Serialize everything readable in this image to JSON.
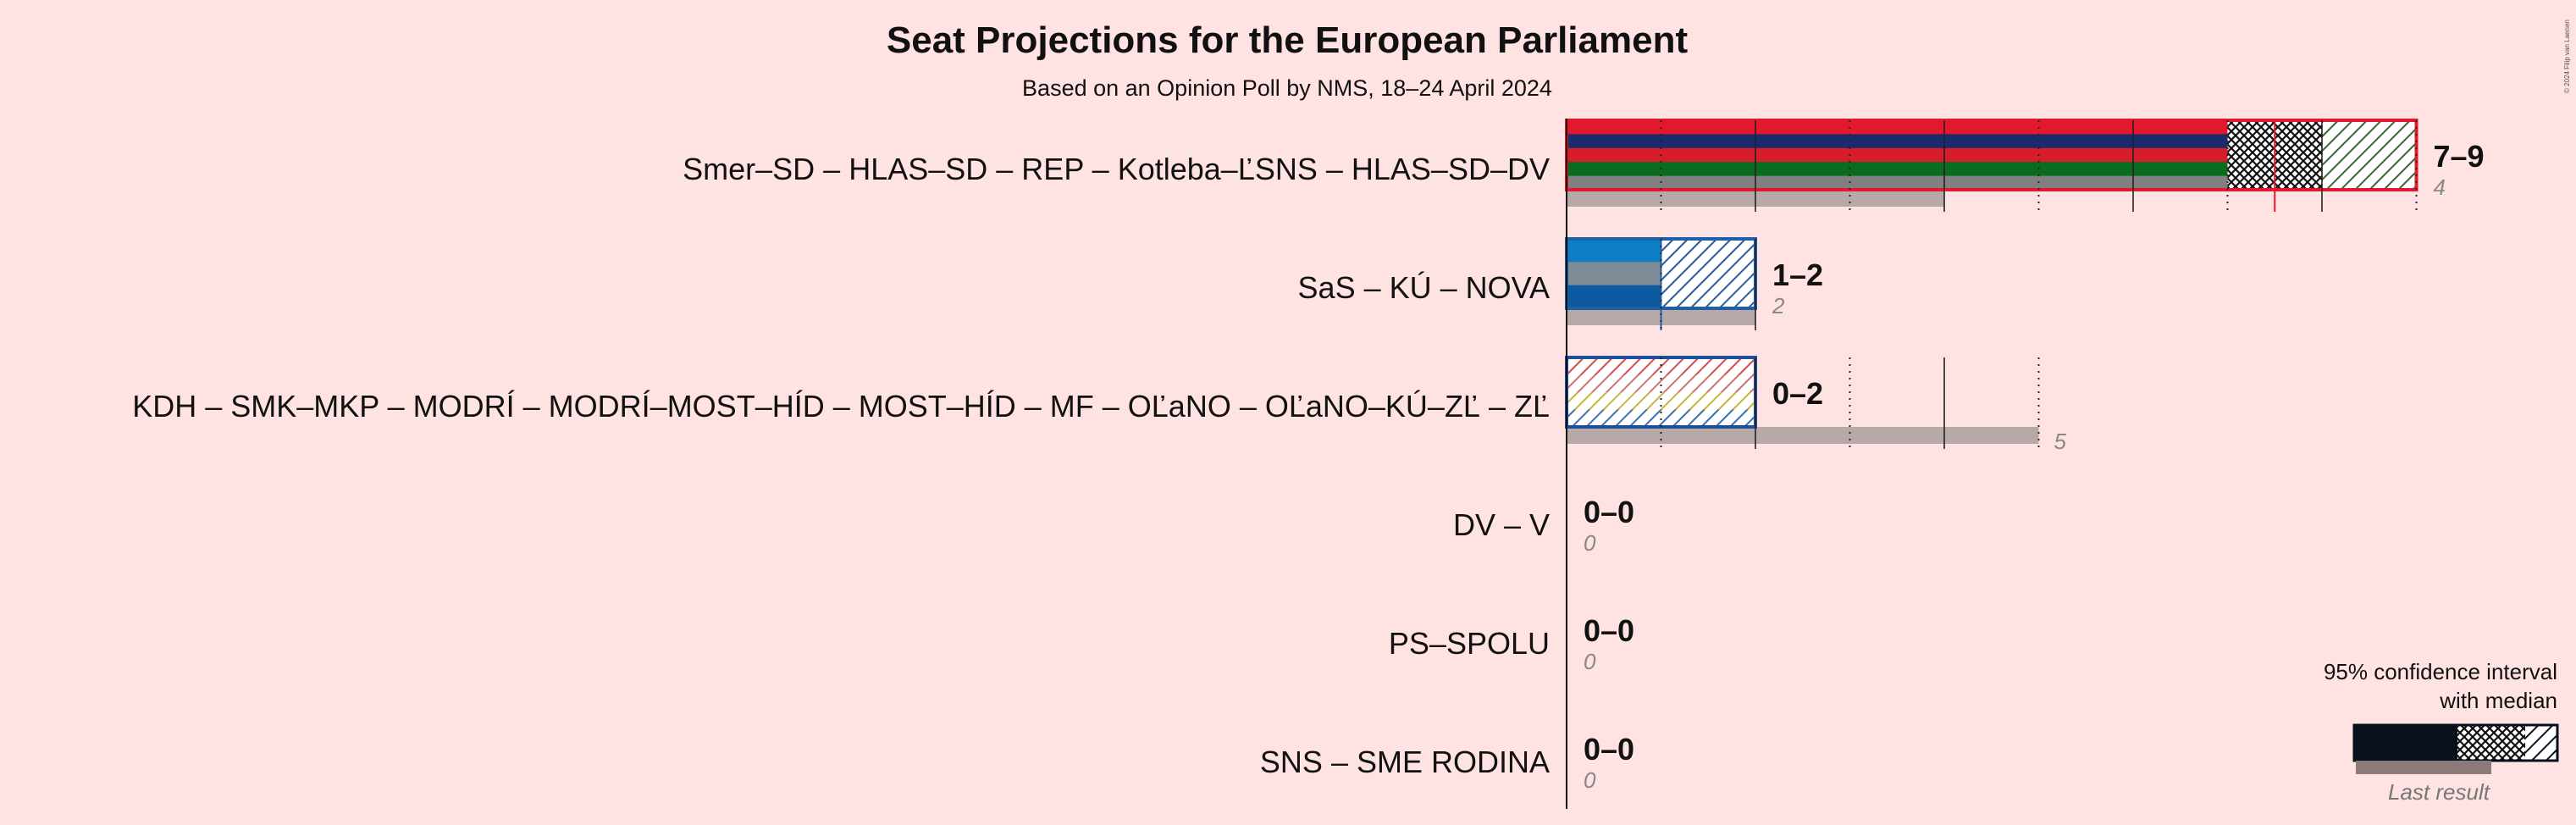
{
  "chart_data": {
    "type": "bar",
    "title": "Seat Projections for the European Parliament",
    "subtitle": "Based on an Opinion Poll by NMS, 18–24 April 2024",
    "xlim": [
      0,
      9
    ],
    "grid": "dotted vertical lines at each seat",
    "rows": [
      {
        "label": "Smer–SD – HLAS–SD – REP – Kotleba–ĽSNS – HLAS–SD–DV",
        "range_text": "7–9",
        "low": 7,
        "high": 9,
        "solid_to": 7,
        "cross_to": 8,
        "median": 7.5,
        "last_result": 4,
        "last_text": "4",
        "colors": [
          "#e4182c",
          "#1a2a6c",
          "#d51e2a",
          "#0a6c1e",
          "#808080"
        ],
        "hatch_color": "#336633",
        "outline": "#e4182c"
      },
      {
        "label": "SaS – KÚ – NOVA",
        "range_text": "1–2",
        "low": 1,
        "high": 2,
        "solid_to": 1,
        "cross_to": 1,
        "median": 1,
        "last_result": 2,
        "last_text": "2",
        "colors": [
          "#0e7ec7",
          "#7f8d99",
          "#0d5aa0"
        ],
        "hatch_color": "#2a5b99",
        "outline": "#1e5fa8"
      },
      {
        "label": "KDH – SMK–MKP – MODRÍ – MODRÍ–MOST–HÍD – MOST–HÍD – MF – OĽaNO – OĽaNO–KÚ–ZĽ – ZĽ",
        "range_text": "0–2",
        "low": 0,
        "high": 2,
        "solid_to": 0,
        "cross_to": 0,
        "median": 0,
        "last_result": 5,
        "last_text": "5",
        "colors": [
          "#d84a4a",
          "#d07070",
          "#c9b43a",
          "#3a6fb0"
        ],
        "hatch_color": "#c04040",
        "outline": "#1e4f9a"
      },
      {
        "label": "DV – V",
        "range_text": "0–0",
        "low": 0,
        "high": 0,
        "solid_to": 0,
        "cross_to": 0,
        "median": 0,
        "last_result": 0,
        "last_text": "0",
        "colors": [
          "#888888"
        ],
        "hatch_color": "#888888",
        "outline": "#888888"
      },
      {
        "label": "PS–SPOLU",
        "range_text": "0–0",
        "low": 0,
        "high": 0,
        "solid_to": 0,
        "cross_to": 0,
        "median": 0,
        "last_result": 0,
        "last_text": "0",
        "colors": [
          "#888888"
        ],
        "hatch_color": "#888888",
        "outline": "#888888"
      },
      {
        "label": "SNS – SME RODINA",
        "range_text": "0–0",
        "low": 0,
        "high": 0,
        "solid_to": 0,
        "cross_to": 0,
        "median": 0,
        "last_result": 0,
        "last_text": "0",
        "colors": [
          "#888888"
        ],
        "hatch_color": "#888888",
        "outline": "#888888"
      }
    ],
    "legend": {
      "line1": "95% confidence interval",
      "line2": "with median",
      "last_result_label": "Last result",
      "placement": "bottom-right"
    },
    "copyright": "© 2024 Filip van Laenen"
  }
}
